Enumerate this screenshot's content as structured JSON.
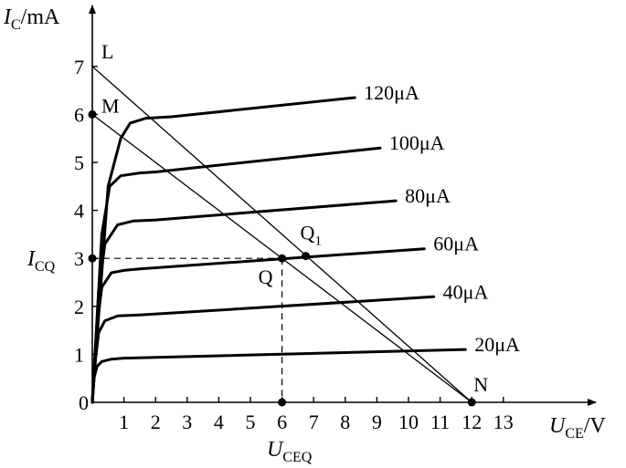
{
  "chart_data": {
    "type": "line",
    "x_axis": {
      "label_main": "U",
      "label_sub": "CE",
      "label_unit": "/V",
      "range": [
        0,
        13.5
      ],
      "ticks": [
        1,
        2,
        3,
        4,
        5,
        6,
        7,
        8,
        9,
        10,
        11,
        12,
        13
      ]
    },
    "y_axis": {
      "label_main": "I",
      "label_sub": "C",
      "label_unit": "/mA",
      "range": [
        0,
        7.2
      ],
      "ticks": [
        0,
        1,
        2,
        3,
        4,
        5,
        6,
        7
      ]
    },
    "origin_label": "0",
    "series": [
      {
        "name": "20μA",
        "points": [
          [
            0,
            0
          ],
          [
            0.05,
            0.5
          ],
          [
            0.15,
            0.75
          ],
          [
            0.3,
            0.85
          ],
          [
            0.6,
            0.9
          ],
          [
            1,
            0.92
          ],
          [
            11.8,
            1.1
          ]
        ],
        "label_at": [
          11.8,
          1.1
        ]
      },
      {
        "name": "40μA",
        "points": [
          [
            0,
            0
          ],
          [
            0.1,
            0.9
          ],
          [
            0.2,
            1.45
          ],
          [
            0.4,
            1.7
          ],
          [
            0.8,
            1.8
          ],
          [
            1.5,
            1.82
          ],
          [
            10.8,
            2.2
          ]
        ],
        "label_at": [
          10.8,
          2.2
        ]
      },
      {
        "name": "60μA",
        "points": [
          [
            0,
            0
          ],
          [
            0.15,
            1.6
          ],
          [
            0.3,
            2.4
          ],
          [
            0.6,
            2.7
          ],
          [
            1,
            2.75
          ],
          [
            1.5,
            2.78
          ],
          [
            10.5,
            3.2
          ]
        ],
        "label_at": [
          10.5,
          3.2
        ]
      },
      {
        "name": "80μA",
        "points": [
          [
            0,
            0
          ],
          [
            0.2,
            2.3
          ],
          [
            0.4,
            3.3
          ],
          [
            0.8,
            3.7
          ],
          [
            1.3,
            3.78
          ],
          [
            2,
            3.8
          ],
          [
            9.6,
            4.2
          ]
        ],
        "label_at": [
          9.6,
          4.2
        ]
      },
      {
        "name": "100μA",
        "points": [
          [
            0,
            0
          ],
          [
            0.3,
            3.5
          ],
          [
            0.55,
            4.5
          ],
          [
            0.9,
            4.72
          ],
          [
            1.5,
            4.78
          ],
          [
            2,
            4.8
          ],
          [
            9.1,
            5.3
          ]
        ],
        "label_at": [
          9.1,
          5.3
        ]
      },
      {
        "name": "120μA",
        "points": [
          [
            0,
            0
          ],
          [
            0.5,
            4.5
          ],
          [
            0.9,
            5.5
          ],
          [
            1.2,
            5.82
          ],
          [
            1.7,
            5.92
          ],
          [
            2.5,
            5.95
          ],
          [
            8.3,
            6.35
          ]
        ],
        "label_at": [
          8.3,
          6.35
        ]
      }
    ],
    "load_lines": [
      {
        "from": [
          0,
          7
        ],
        "to": [
          12,
          0
        ]
      },
      {
        "from": [
          0,
          6
        ],
        "to": [
          12,
          0
        ]
      }
    ],
    "points": [
      {
        "name": "M",
        "at": [
          0,
          6
        ]
      },
      {
        "name": "Q",
        "at": [
          6,
          3
        ]
      },
      {
        "name": "Q1",
        "label_main": "Q",
        "label_sub": "1",
        "at": [
          6.75,
          3.05
        ]
      },
      {
        "name": "N",
        "at": [
          12,
          0
        ]
      }
    ],
    "annotations": {
      "L": "L",
      "I_CQ_main": "I",
      "I_CQ_sub": "CQ",
      "U_CEQ_main": "U",
      "U_CEQ_sub": "CEQ"
    }
  }
}
